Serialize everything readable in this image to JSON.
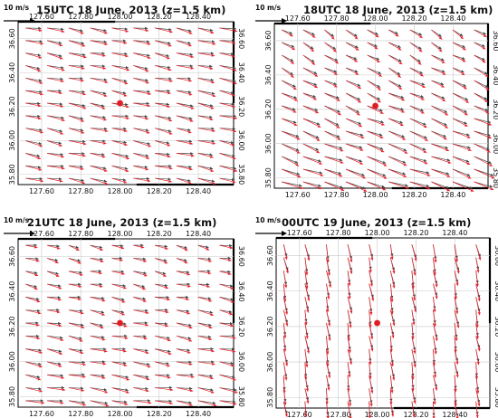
{
  "reference_arrow": {
    "label": "10 m/s",
    "speed_ms": 10
  },
  "colors": {
    "observed": "#444444",
    "analysis": "#e8202a",
    "marker": "#e31b23",
    "grid": "#c8c8c8",
    "frame": "#000000"
  },
  "chart_data": [
    {
      "type": "vector",
      "title": "15UTC 18 June, 2013 (z=1.5 km)",
      "xticks": [
        "127.60",
        "127.80",
        "128.00",
        "128.20",
        "128.40"
      ],
      "yticks": [
        "35.80",
        "36.00",
        "36.20",
        "36.40",
        "36.60"
      ],
      "xlim": [
        127.48,
        128.58
      ],
      "ylim": [
        35.74,
        36.7
      ],
      "marker": {
        "lon": 128.0,
        "lat": 36.22
      },
      "flow": {
        "u": 9.5,
        "v": -1.8,
        "lat_gradient": 0.0,
        "speed": 1.0
      },
      "series": [
        "observed",
        "analysis"
      ]
    },
    {
      "type": "vector",
      "title": "18UTC 18 June, 2013 (z=1.5 km)",
      "xticks": [
        "127.60",
        "127.80",
        "128.00",
        "128.20",
        "128.40"
      ],
      "yticks": [
        "35.80",
        "36.00",
        "36.20",
        "36.40",
        "36.60"
      ],
      "xlim": [
        127.48,
        128.58
      ],
      "ylim": [
        35.74,
        36.7
      ],
      "marker": {
        "lon": 128.0,
        "lat": 36.22
      },
      "flow": {
        "u": 9.0,
        "v": -4.0,
        "lat_gradient": 0.6,
        "speed": 1.0
      },
      "series": [
        "observed",
        "analysis"
      ]
    },
    {
      "type": "vector",
      "title": "21UTC 18 June, 2013 (z=1.5 km)",
      "xticks": [
        "127.60",
        "127.80",
        "128.00",
        "128.20",
        "128.40"
      ],
      "yticks": [
        "35.80",
        "36.00",
        "36.20",
        "36.40",
        "36.60"
      ],
      "xlim": [
        127.48,
        128.58
      ],
      "ylim": [
        35.74,
        36.7
      ],
      "marker": {
        "lon": 128.0,
        "lat": 36.22
      },
      "flow": {
        "u": 8.5,
        "v": -1.5,
        "lat_gradient": 0.4,
        "speed": 1.0
      },
      "series": [
        "observed",
        "analysis"
      ]
    },
    {
      "type": "vector",
      "title": "00UTC 19 June, 2013 (z=1.5 km)",
      "xticks": [
        "127.60",
        "127.80",
        "128.00",
        "128.20",
        "128.40"
      ],
      "yticks": [
        "35.80",
        "36.00",
        "36.20",
        "36.40",
        "36.60"
      ],
      "xlim": [
        127.48,
        128.58
      ],
      "ylim": [
        35.74,
        36.7
      ],
      "marker": {
        "lon": 128.0,
        "lat": 36.22
      },
      "flow": {
        "u": 1.5,
        "v": -9.0,
        "lat_gradient": -0.5,
        "speed": 1.0
      },
      "series": [
        "observed",
        "analysis"
      ]
    }
  ]
}
